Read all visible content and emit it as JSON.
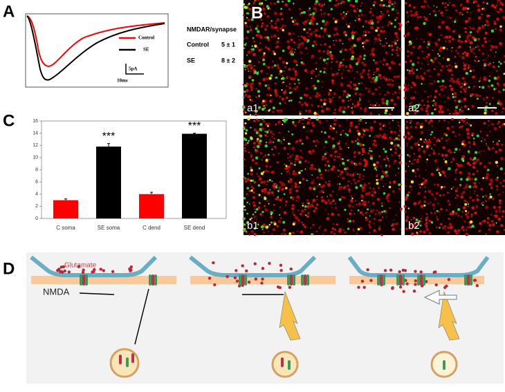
{
  "panels": {
    "a": {
      "letter": "A",
      "legend": [
        "Control",
        "SE"
      ],
      "scale_y": "5pA",
      "scale_x": "10ms",
      "table": {
        "header": "NMDAR/synapse",
        "rows": [
          [
            "Control",
            "5 ± 1"
          ],
          [
            "SE",
            "8 ± 2"
          ]
        ]
      }
    },
    "b": {
      "letter": "B",
      "labels": [
        "a1",
        "a2",
        "b1",
        "b2"
      ]
    },
    "c": {
      "letter": "C"
    },
    "d": {
      "letter": "D",
      "glutamate": "Glutamate",
      "nmda": "NMDA"
    }
  },
  "chart_data": {
    "type": "bar",
    "categories": [
      "C soma",
      "SE soma",
      "C dend",
      "SE dend"
    ],
    "values": [
      3,
      11.8,
      4,
      13.9
    ],
    "errors": [
      0.2,
      0.5,
      0.3,
      0.1
    ],
    "colors": [
      "#ff0000",
      "#000000",
      "#ff0000",
      "#000000"
    ],
    "annotations": [
      null,
      "***",
      null,
      "***"
    ],
    "ylim": [
      0,
      16
    ],
    "yticks": [
      0,
      2,
      4,
      6,
      8,
      10,
      12,
      14,
      16
    ]
  }
}
